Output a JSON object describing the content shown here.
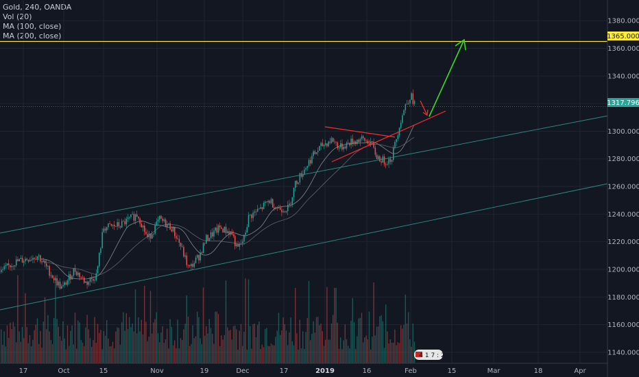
{
  "legend": {
    "title": "Gold, 240, OANDA",
    "vol": "Vol (20)",
    "ma100": "MA (100, close)",
    "ma200": "MA (200, close)"
  },
  "price_tags": {
    "resistance": "1365.000",
    "last": "1317.796"
  },
  "badge": "4 1 7 : 2",
  "colors": {
    "background": "#131722",
    "up": "#26a69a",
    "down": "#ef5350",
    "resistance": "#ffeb3b",
    "channel": "#2a8f86",
    "triangle": "#ff2b2b",
    "arrow_up": "#38e01f",
    "arrow_down": "#ff2b2b",
    "ma": "#9598a1"
  },
  "chart_data": {
    "type": "candlestick",
    "title": "Gold, 240, OANDA",
    "ylim": [
      1132,
      1395
    ],
    "y_ticks": [
      1140,
      1160,
      1180,
      1200,
      1220,
      1240,
      1260,
      1280,
      1300,
      1320,
      1340,
      1360,
      1380
    ],
    "y_tick_labels": [
      "1140.000",
      "1160.000",
      "1180.000",
      "1200.000",
      "1220.000",
      "1240.000",
      "1260.000",
      "1280.000",
      "1300.000",
      "1320.000",
      "1340.000",
      "1360.000",
      "1380.000"
    ],
    "x_ticks": [
      "17",
      "Oct",
      "15",
      "Nov",
      "19",
      "Dec",
      "17",
      "2019",
      "16",
      "Feb",
      "15",
      "Mar",
      "18",
      "Apr"
    ],
    "bold_tick": "2019",
    "resistance_level": 1365.0,
    "last_price": 1317.796,
    "price_path": [
      [
        "17",
        1203
      ],
      [
        "Oct",
        1196
      ],
      [
        "15",
        1228
      ],
      [
        "Nov",
        1218
      ],
      [
        "19",
        1205
      ],
      [
        "Dec",
        1222
      ],
      [
        "17",
        1242
      ],
      [
        "2019",
        1288
      ],
      [
        "16",
        1290
      ],
      [
        "Feb",
        1318
      ]
    ],
    "annotations": [
      "channel lines",
      "triangle pattern",
      "pullback arrow",
      "target arrow to 1365"
    ]
  }
}
